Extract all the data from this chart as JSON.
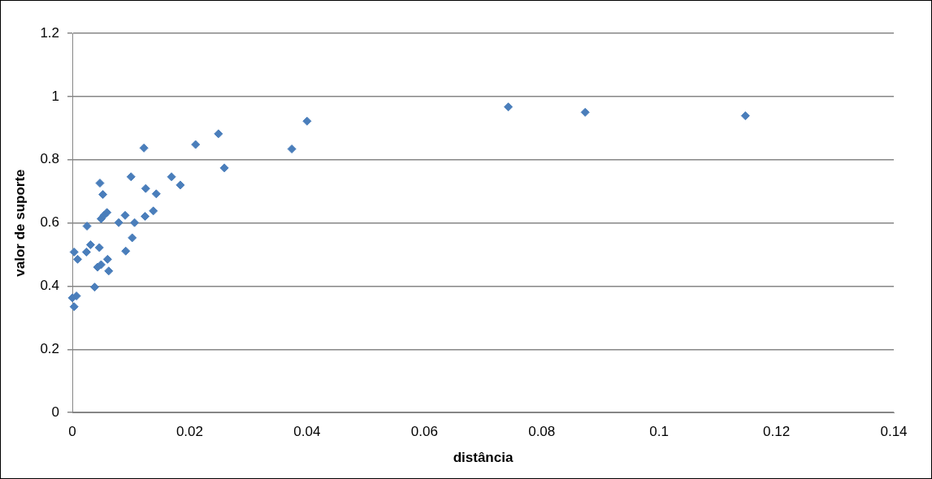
{
  "chart_data": {
    "type": "scatter",
    "xlabel": "distância",
    "ylabel": "valor de suporte",
    "x": [
      0,
      0.0003,
      0.0007,
      0.0038,
      0.0003,
      0.0009,
      0.0025,
      0.0024,
      0.0031,
      0.0046,
      0.0043,
      0.0049,
      0.006,
      0.0062,
      0.0047,
      0.0052,
      0.0049,
      0.0059,
      0.0054,
      0.0079,
      0.009,
      0.0091,
      0.0102,
      0.0106,
      0.0124,
      0.0138,
      0.01,
      0.0125,
      0.0143,
      0.0122,
      0.0169,
      0.0184,
      0.021,
      0.0249,
      0.0259,
      0.0374,
      0.04,
      0.0743,
      0.0874,
      0.1147
    ],
    "values": [
      0.363,
      0.335,
      0.369,
      0.397,
      0.508,
      0.485,
      0.59,
      0.508,
      0.531,
      0.522,
      0.46,
      0.468,
      0.485,
      0.448,
      0.726,
      0.69,
      0.613,
      0.633,
      0.624,
      0.601,
      0.624,
      0.511,
      0.553,
      0.601,
      0.621,
      0.638,
      0.746,
      0.709,
      0.692,
      0.837,
      0.746,
      0.72,
      0.848,
      0.882,
      0.774,
      0.834,
      0.922,
      0.967,
      0.95,
      0.939
    ],
    "color": "#4a7ebb",
    "marker": "diamond",
    "grid": "y",
    "legend": false,
    "xlim": [
      0,
      0.14
    ],
    "xticks": [
      0,
      0.02,
      0.04,
      0.06,
      0.08,
      0.1,
      0.12,
      0.14
    ],
    "ylim": [
      0,
      1.2
    ],
    "yticks": [
      0,
      0.2,
      0.4,
      0.6,
      0.8,
      1,
      1.2
    ]
  }
}
